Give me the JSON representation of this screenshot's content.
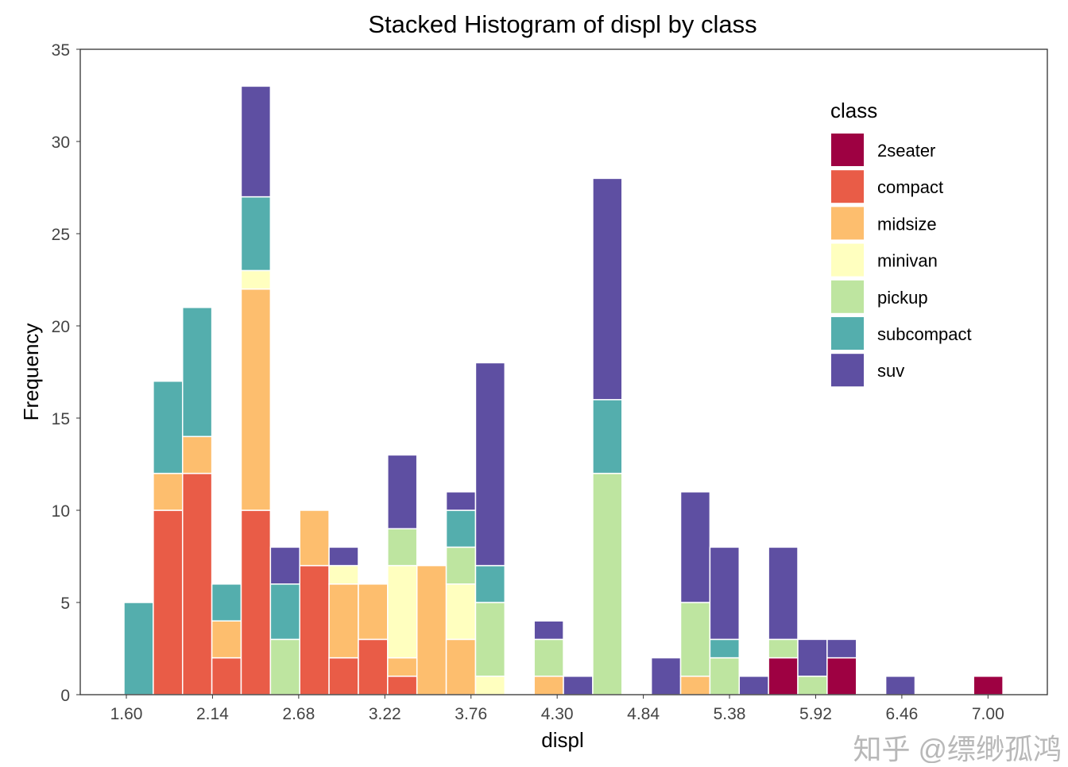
{
  "chart_data": {
    "type": "bar",
    "stacked": true,
    "title": "Stacked Histogram of displ by class",
    "xlabel": "displ",
    "ylabel": "Frequency",
    "ylim": [
      0,
      35
    ],
    "yticks": [
      0,
      5,
      10,
      15,
      20,
      25,
      30,
      35
    ],
    "xticks": [
      "1.60",
      "2.14",
      "2.68",
      "3.22",
      "3.76",
      "4.30",
      "4.84",
      "5.38",
      "5.92",
      "6.46",
      "7.00"
    ],
    "grid": false,
    "legend": {
      "title": "class",
      "placement": "top-right"
    },
    "classes": [
      "2seater",
      "compact",
      "midsize",
      "minivan",
      "pickup",
      "subcompact",
      "suv"
    ],
    "colors": {
      "2seater": "#9E0142",
      "compact": "#E95C47",
      "midsize": "#FDBE6E",
      "minivan": "#FFFFBF",
      "pickup": "#BEE5A0",
      "subcompact": "#54AEAD",
      "suv": "#5E4FA2"
    },
    "bins": [
      {
        "subcompact": 5
      },
      {
        "compact": 10,
        "midsize": 2,
        "subcompact": 5
      },
      {
        "compact": 12,
        "midsize": 2,
        "subcompact": 7
      },
      {
        "compact": 2,
        "midsize": 2,
        "subcompact": 2
      },
      {
        "compact": 10,
        "midsize": 12,
        "minivan": 1,
        "subcompact": 4,
        "suv": 6
      },
      {
        "pickup": 3,
        "subcompact": 3,
        "suv": 2
      },
      {
        "compact": 7,
        "midsize": 3
      },
      {
        "compact": 2,
        "midsize": 4,
        "minivan": 1,
        "suv": 1
      },
      {
        "compact": 3,
        "midsize": 3
      },
      {
        "compact": 1,
        "midsize": 1,
        "minivan": 5,
        "pickup": 2,
        "suv": 4
      },
      {
        "midsize": 7
      },
      {
        "midsize": 3,
        "minivan": 3,
        "pickup": 2,
        "subcompact": 2,
        "suv": 1
      },
      {
        "minivan": 1,
        "pickup": 4,
        "subcompact": 2,
        "suv": 11
      },
      {},
      {
        "midsize": 1,
        "pickup": 2,
        "suv": 1
      },
      {
        "suv": 1
      },
      {
        "pickup": 12,
        "subcompact": 4,
        "suv": 12
      },
      {},
      {
        "suv": 2
      },
      {
        "midsize": 1,
        "pickup": 4,
        "suv": 6
      },
      {
        "pickup": 2,
        "subcompact": 1,
        "suv": 5
      },
      {
        "suv": 1
      },
      {
        "2seater": 2,
        "pickup": 1,
        "suv": 5
      },
      {
        "pickup": 1,
        "suv": 2
      },
      {
        "2seater": 2,
        "suv": 1
      },
      {},
      {
        "suv": 1
      },
      {},
      {},
      {
        "2seater": 1
      }
    ]
  },
  "watermark": "知乎 @缥缈孤鸿"
}
